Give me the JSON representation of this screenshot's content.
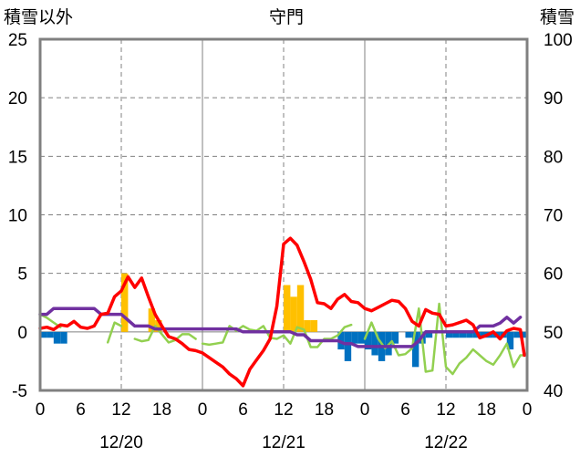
{
  "chart_data": {
    "type": "line",
    "title": "守門",
    "ylabel_left": "積雪以外",
    "ylabel_right": "積雪",
    "left_axis": {
      "min": -5,
      "max": 25,
      "ticks": [
        -5,
        0,
        5,
        10,
        15,
        20,
        25
      ]
    },
    "right_axis": {
      "min": 40,
      "max": 100,
      "ticks": [
        40,
        50,
        60,
        70,
        80,
        90,
        100
      ]
    },
    "x_axis": {
      "hours_total": 72,
      "tick_labels": [
        "0",
        "6",
        "12",
        "18",
        "0",
        "6",
        "12",
        "18",
        "0",
        "6",
        "12",
        "18",
        "0"
      ],
      "date_labels": [
        "12/20",
        "12/21",
        "12/22"
      ]
    },
    "grid": true,
    "colors": {
      "temperature": "#ff0000",
      "snow_depth": "#7030a0",
      "wind": "#92d050",
      "snowfall_positive": "#ffc000",
      "snowfall_negative": "#0070c0",
      "grid": "#808080",
      "frame": "#808080"
    },
    "bars": [
      [
        0,
        -0.5
      ],
      [
        1,
        -0.5
      ],
      [
        2,
        -1.0
      ],
      [
        3,
        -1.0
      ],
      [
        12,
        5.0
      ],
      [
        16,
        2.0
      ],
      [
        17,
        1.0
      ],
      [
        36,
        4.0
      ],
      [
        37,
        3.0
      ],
      [
        38,
        4.0
      ],
      [
        39,
        1.0
      ],
      [
        40,
        1.0
      ],
      [
        44,
        -1.5
      ],
      [
        45,
        -2.5
      ],
      [
        46,
        -1.0
      ],
      [
        47,
        -1.0
      ],
      [
        48,
        -1.5
      ],
      [
        49,
        -2.0
      ],
      [
        50,
        -2.5
      ],
      [
        51,
        -2.0
      ],
      [
        52,
        -1.0
      ],
      [
        54,
        -0.5
      ],
      [
        55,
        -3.0
      ],
      [
        56,
        -1.0
      ],
      [
        57,
        -0.5
      ],
      [
        60,
        -0.5
      ],
      [
        61,
        -0.5
      ],
      [
        62,
        -0.5
      ],
      [
        63,
        -0.5
      ],
      [
        64,
        -0.5
      ],
      [
        65,
        -0.5
      ],
      [
        66,
        -0.5
      ],
      [
        67,
        -0.5
      ],
      [
        68,
        -0.5
      ],
      [
        69,
        -1.5
      ],
      [
        70,
        -0.5
      ],
      [
        71,
        -0.5
      ]
    ],
    "series": [
      {
        "axis": "left",
        "color": "#ff0000",
        "width": 3.5,
        "points": [
          [
            0,
            0.3
          ],
          [
            1,
            0.4
          ],
          [
            2,
            0.2
          ],
          [
            3,
            0.6
          ],
          [
            4,
            0.5
          ],
          [
            5,
            0.9
          ],
          [
            6,
            0.4
          ],
          [
            7,
            0.3
          ],
          [
            8,
            0.5
          ],
          [
            9,
            1.5
          ],
          [
            10,
            1.6
          ],
          [
            11,
            3.0
          ],
          [
            12,
            3.5
          ],
          [
            13,
            4.7
          ],
          [
            14,
            3.8
          ],
          [
            15,
            4.6
          ],
          [
            16,
            3.0
          ],
          [
            17,
            1.5
          ],
          [
            18,
            0.5
          ],
          [
            19,
            -0.4
          ],
          [
            20,
            -0.6
          ],
          [
            21,
            -1.0
          ],
          [
            22,
            -1.5
          ],
          [
            23,
            -1.6
          ],
          [
            24,
            -1.8
          ],
          [
            25,
            -2.2
          ],
          [
            26,
            -2.6
          ],
          [
            27,
            -3.0
          ],
          [
            28,
            -3.6
          ],
          [
            29,
            -4.0
          ],
          [
            30,
            -4.6
          ],
          [
            31,
            -3.2
          ],
          [
            32,
            -2.4
          ],
          [
            33,
            -1.6
          ],
          [
            34,
            -0.6
          ],
          [
            35,
            2.2
          ],
          [
            36,
            7.5
          ],
          [
            37,
            8.0
          ],
          [
            38,
            7.4
          ],
          [
            39,
            6.0
          ],
          [
            40,
            4.5
          ],
          [
            41,
            2.5
          ],
          [
            42,
            2.4
          ],
          [
            43,
            2.0
          ],
          [
            44,
            2.8
          ],
          [
            45,
            3.2
          ],
          [
            46,
            2.6
          ],
          [
            47,
            2.5
          ],
          [
            48,
            2.0
          ],
          [
            49,
            1.8
          ],
          [
            50,
            2.1
          ],
          [
            51,
            2.4
          ],
          [
            52,
            2.7
          ],
          [
            53,
            2.6
          ],
          [
            54,
            2.0
          ],
          [
            55,
            0.9
          ],
          [
            56,
            0.5
          ],
          [
            57,
            1.9
          ],
          [
            58,
            1.6
          ],
          [
            59,
            1.5
          ],
          [
            60,
            0.5
          ],
          [
            61,
            0.6
          ],
          [
            62,
            0.8
          ],
          [
            63,
            1.0
          ],
          [
            64,
            0.6
          ],
          [
            65,
            -0.5
          ],
          [
            66,
            -0.3
          ],
          [
            67,
            0.0
          ],
          [
            68,
            -0.6
          ],
          [
            69,
            0.1
          ],
          [
            70,
            0.3
          ],
          [
            71,
            0.2
          ],
          [
            71.6,
            -2.0
          ]
        ]
      },
      {
        "axis": "right",
        "color": "#7030a0",
        "width": 3.5,
        "points": [
          [
            0,
            53
          ],
          [
            1,
            53
          ],
          [
            2,
            54
          ],
          [
            3,
            54
          ],
          [
            4,
            54
          ],
          [
            5,
            54
          ],
          [
            6,
            54
          ],
          [
            7,
            54
          ],
          [
            8,
            54
          ],
          [
            9,
            53
          ],
          [
            10,
            53
          ],
          [
            11,
            53
          ],
          [
            12,
            53
          ],
          [
            13,
            52
          ],
          [
            14,
            51
          ],
          [
            15,
            51
          ],
          [
            16,
            51
          ],
          [
            17,
            50.5
          ],
          [
            18,
            50.5
          ],
          [
            19,
            50.5
          ],
          [
            20,
            50.5
          ],
          [
            21,
            50.5
          ],
          [
            22,
            50.5
          ],
          [
            23,
            50.5
          ],
          [
            24,
            50.5
          ],
          [
            25,
            50.5
          ],
          [
            26,
            50.5
          ],
          [
            27,
            50.5
          ],
          [
            28,
            50.5
          ],
          [
            29,
            50.5
          ],
          [
            30,
            50
          ],
          [
            31,
            50
          ],
          [
            32,
            50
          ],
          [
            33,
            50
          ],
          [
            34,
            50
          ],
          [
            35,
            50
          ],
          [
            36,
            50
          ],
          [
            37,
            50
          ],
          [
            38,
            49.5
          ],
          [
            39,
            49.5
          ],
          [
            40,
            48.5
          ],
          [
            41,
            48.5
          ],
          [
            42,
            48.5
          ],
          [
            43,
            48.5
          ],
          [
            44,
            48.5
          ],
          [
            45,
            48
          ],
          [
            46,
            48
          ],
          [
            47,
            47.5
          ],
          [
            48,
            47.5
          ],
          [
            49,
            47.5
          ],
          [
            50,
            47.5
          ],
          [
            51,
            47.5
          ],
          [
            52,
            47.5
          ],
          [
            53,
            47.5
          ],
          [
            54,
            47.5
          ],
          [
            55,
            47.5
          ],
          [
            56,
            48.5
          ],
          [
            57,
            50
          ],
          [
            58,
            50
          ],
          [
            59,
            50
          ],
          [
            60,
            50
          ],
          [
            61,
            50
          ],
          [
            62,
            50
          ],
          [
            63,
            50
          ],
          [
            64,
            50
          ],
          [
            65,
            51
          ],
          [
            66,
            51
          ],
          [
            67,
            51
          ],
          [
            68,
            51.5
          ],
          [
            69,
            52.5
          ],
          [
            70,
            51.5
          ],
          [
            71,
            52.5
          ]
        ]
      },
      {
        "axis": "left",
        "color": "#92d050",
        "width": 2.5,
        "segments": [
          [
            [
              0,
              1.5
            ],
            [
              1,
              1.2
            ],
            [
              2,
              0.8
            ],
            [
              3,
              0.4
            ]
          ],
          [
            [
              10,
              -0.9
            ],
            [
              11,
              0.8
            ],
            [
              12,
              0.5
            ]
          ],
          [
            [
              14,
              -0.6
            ],
            [
              15,
              -0.8
            ],
            [
              16,
              -0.7
            ],
            [
              17,
              0.5
            ],
            [
              18,
              -0.2
            ],
            [
              19,
              -0.9
            ],
            [
              20,
              -0.7
            ],
            [
              21,
              -0.2
            ],
            [
              22,
              -0.2
            ],
            [
              23,
              -0.6
            ]
          ],
          [
            [
              24,
              -1.0
            ],
            [
              25,
              -1.1
            ],
            [
              26,
              -1.0
            ],
            [
              27,
              -0.9
            ],
            [
              28,
              0.5
            ],
            [
              29,
              0.1
            ],
            [
              30,
              0.5
            ],
            [
              31,
              0.2
            ],
            [
              32,
              0.1
            ],
            [
              33,
              0.5
            ],
            [
              34,
              -0.5
            ],
            [
              35,
              -0.6
            ],
            [
              36,
              -0.3
            ],
            [
              37,
              -1.0
            ],
            [
              38,
              0.4
            ],
            [
              39,
              0.2
            ],
            [
              40,
              -1.3
            ],
            [
              41,
              -1.3
            ],
            [
              42,
              -0.6
            ],
            [
              43,
              -0.6
            ],
            [
              44,
              -0.3
            ],
            [
              45,
              0.4
            ],
            [
              46,
              0.6
            ]
          ],
          [
            [
              48,
              -0.6
            ],
            [
              49,
              0.8
            ],
            [
              50,
              -0.6
            ],
            [
              51,
              -1.4
            ],
            [
              52,
              -0.8
            ],
            [
              53,
              -2.0
            ],
            [
              54,
              -1.9
            ],
            [
              55,
              -1.4
            ],
            [
              56,
              2.0
            ],
            [
              57,
              -3.4
            ],
            [
              58,
              -3.3
            ],
            [
              59,
              2.4
            ],
            [
              60,
              -3.0
            ],
            [
              61,
              -3.6
            ],
            [
              62,
              -2.7
            ],
            [
              63,
              -2.2
            ],
            [
              64,
              -1.5
            ],
            [
              65,
              -2.0
            ],
            [
              66,
              -2.5
            ],
            [
              67,
              -2.8
            ],
            [
              68,
              -2.0
            ],
            [
              69,
              -1.0
            ],
            [
              70,
              -3.0
            ],
            [
              71,
              -2.0
            ],
            [
              71.6,
              -2.0
            ]
          ]
        ]
      }
    ]
  }
}
